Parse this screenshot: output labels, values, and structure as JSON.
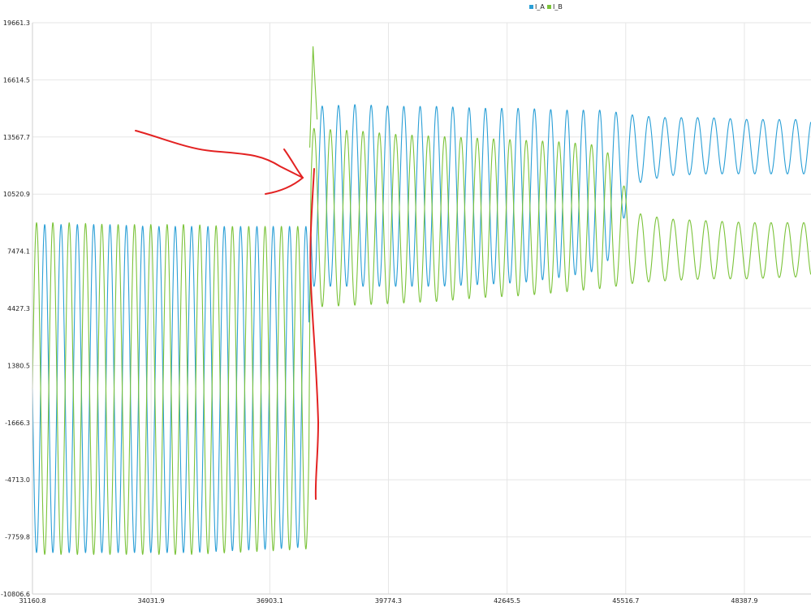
{
  "chart_data": {
    "type": "line",
    "title": "",
    "xlabel": "",
    "ylabel": "",
    "xlim": [
      31160.8,
      50000
    ],
    "ylim": [
      -10806.6,
      19661.3
    ],
    "x_ticks": [
      "31160.8",
      "34031.9",
      "36903.1",
      "39774.3",
      "42645.5",
      "45516.7",
      "48387.9"
    ],
    "x_tick_values": [
      31160.8,
      34031.9,
      36903.1,
      39774.3,
      42645.5,
      45516.7,
      48387.9
    ],
    "y_ticks": [
      "19661.3",
      "16614.5",
      "13567.7",
      "10520.9",
      "7474.1",
      "4427.3",
      "1380.5",
      "-1666.3",
      "-4713.0",
      "-7759.8",
      "-10806.6"
    ],
    "y_tick_values": [
      19661.3,
      16614.5,
      13567.7,
      10520.9,
      7474.1,
      4427.3,
      1380.5,
      -1666.3,
      -4713.0,
      -7759.8,
      -10806.6
    ],
    "grid": true,
    "legend_position": "top-right",
    "series": [
      {
        "name": "I_A",
        "color": "#2a9fd6",
        "x": [
          31160.8,
          31500,
          32000,
          33000,
          34000,
          35000,
          36000,
          37000,
          37850,
          37900,
          38000,
          39000,
          40000,
          41000,
          42000,
          43000,
          44000,
          45000,
          45800,
          46500,
          47500,
          48500,
          49500,
          50000
        ],
        "min": [
          -8600,
          -8600,
          -8600,
          -8600,
          -8600,
          -8600,
          -8500,
          -8400,
          -8300,
          5600,
          5600,
          5600,
          5600,
          5600,
          5700,
          5800,
          6100,
          6500,
          11100,
          11500,
          11600,
          11600,
          11600,
          11600
        ],
        "max": [
          8900,
          8900,
          8900,
          8900,
          8800,
          8800,
          8800,
          8800,
          8800,
          15000,
          15200,
          15300,
          15200,
          15200,
          15100,
          15100,
          15000,
          15000,
          14700,
          14600,
          14600,
          14500,
          14500,
          14500
        ],
        "period": 395,
        "phase": 0.5
      },
      {
        "name": "I_B",
        "color": "#7bc33a",
        "x": [
          31160.8,
          31500,
          32000,
          33000,
          34000,
          35000,
          36000,
          37000,
          37850,
          37900,
          38000,
          39000,
          40000,
          41000,
          42000,
          43000,
          44000,
          45000,
          45800,
          46500,
          47500,
          48500,
          49500,
          50000
        ],
        "min": [
          -8700,
          -8700,
          -8700,
          -8700,
          -8700,
          -8700,
          -8600,
          -8500,
          -8400,
          4500,
          4500,
          4600,
          4700,
          4800,
          5000,
          5100,
          5300,
          5500,
          5800,
          5900,
          6000,
          6000,
          6100,
          6100
        ],
        "max": [
          9000,
          9000,
          9000,
          8900,
          8900,
          8900,
          8800,
          8800,
          8800,
          14100,
          14000,
          13900,
          13700,
          13600,
          13500,
          13400,
          13300,
          13100,
          9500,
          9200,
          9100,
          9000,
          9000,
          9000
        ],
        "period": 395,
        "phase": 0
      }
    ]
  },
  "legend": {
    "items": [
      {
        "label": "I_A",
        "color": "#2a9fd6"
      },
      {
        "label": "I_B",
        "color": "#7bc33a"
      }
    ]
  }
}
